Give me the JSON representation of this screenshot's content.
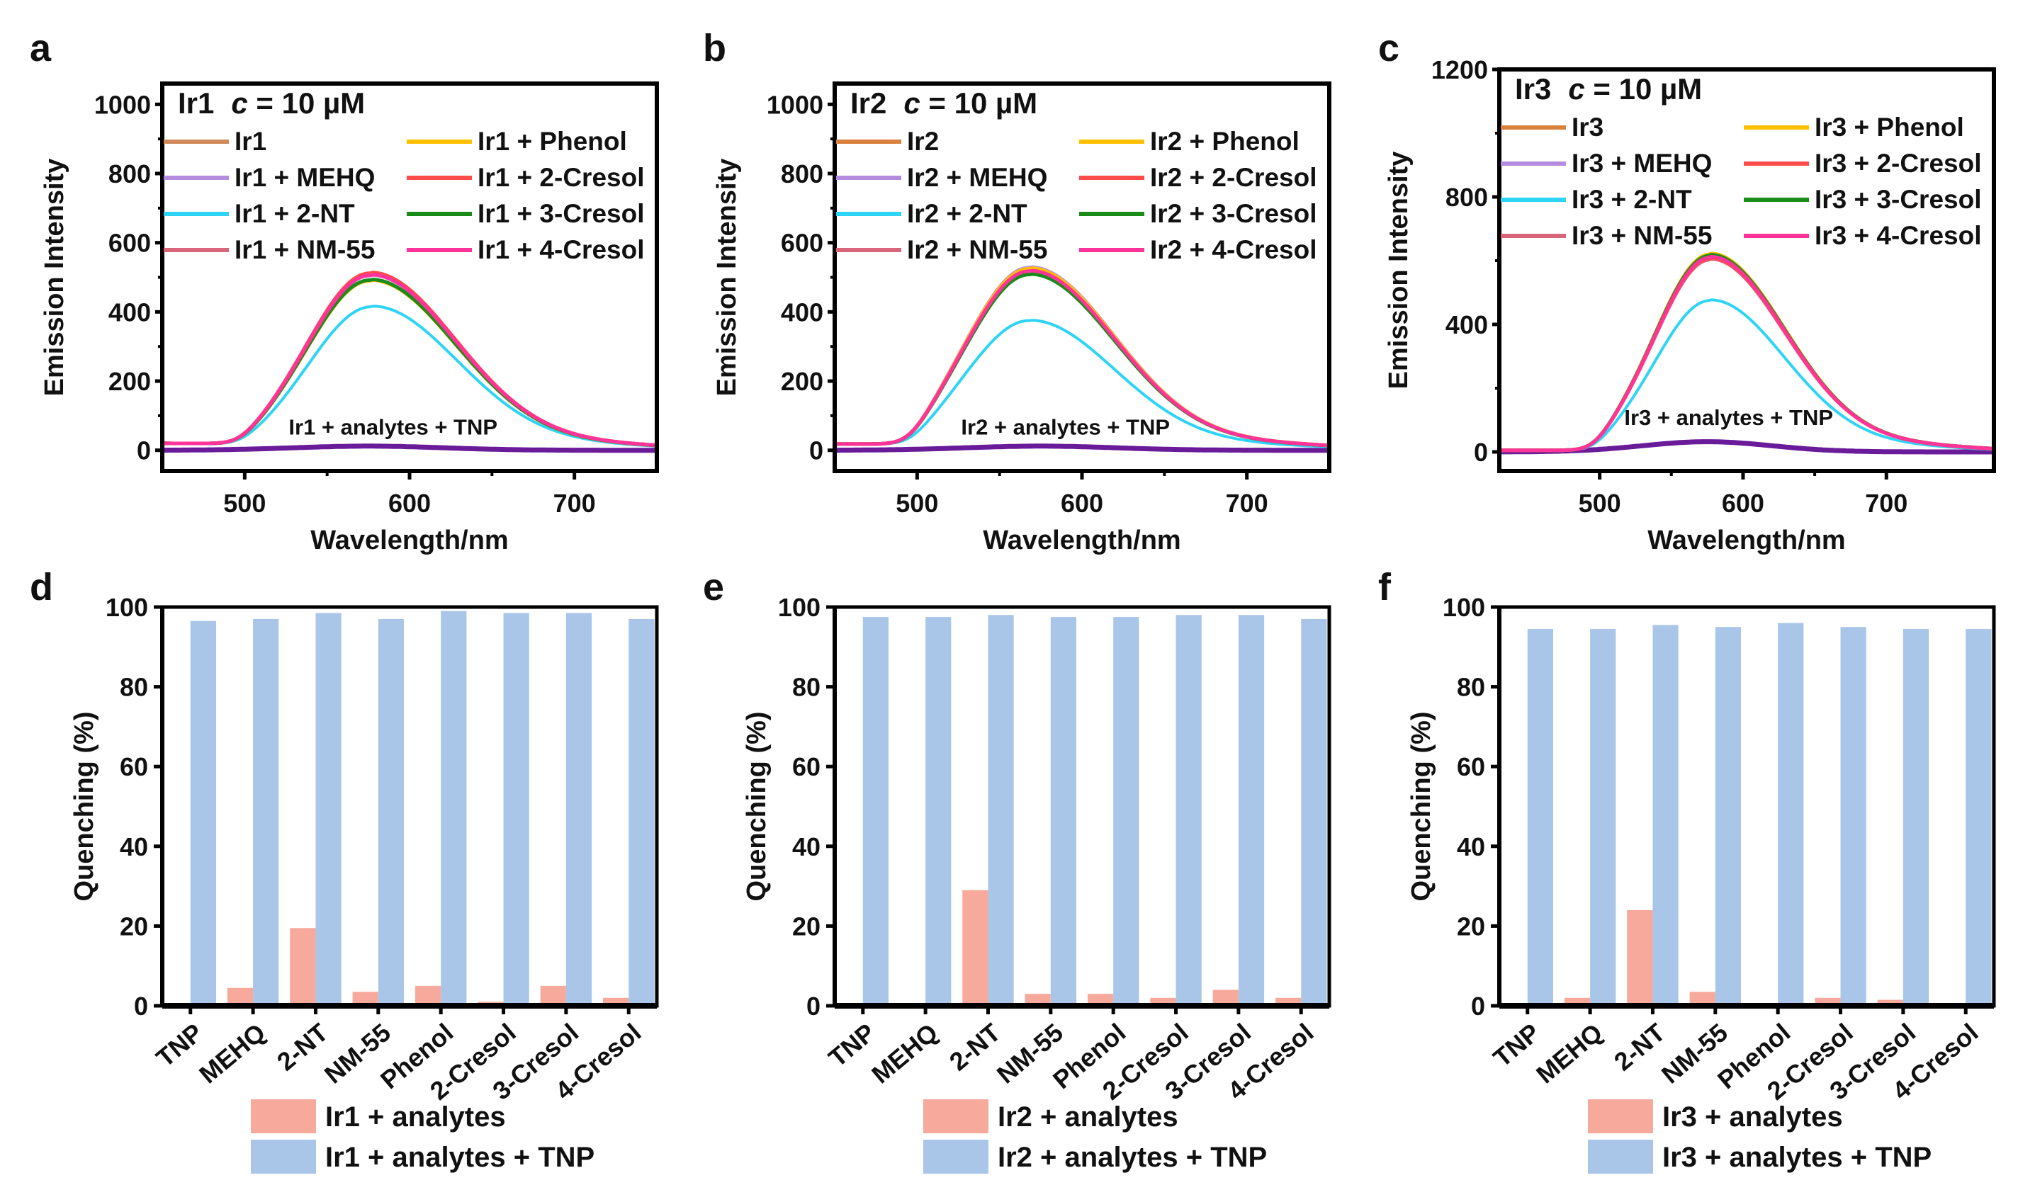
{
  "figure": {
    "panels": [
      "a",
      "b",
      "c",
      "d",
      "e",
      "f"
    ]
  },
  "chart_data": [
    {
      "panel": "a",
      "type": "line",
      "title": "Ir1  c = 10 µM",
      "title_prefix": "Ir1",
      "title_var": "c",
      "title_suffix": " = 10 µM",
      "xlabel": "Wavelength/nm",
      "ylabel": "Emission Intensity",
      "xlim": [
        450,
        750
      ],
      "ylim": [
        -60,
        1060
      ],
      "xticks": [
        500,
        600,
        700
      ],
      "yticks": [
        0,
        200,
        400,
        600,
        800,
        1000
      ],
      "annotation": "Ir1 + analytes + TNP",
      "legend_position": "top (two columns)",
      "series": [
        {
          "name": "Ir1",
          "color": "#D08A5A",
          "peak": 510,
          "peak_x": 576
        },
        {
          "name": "Ir1 + MEHQ",
          "color": "#B58BE0",
          "peak": 505,
          "peak_x": 576
        },
        {
          "name": "Ir1 + 2-NT",
          "color": "#2ED4F5",
          "peak": 415,
          "peak_x": 577
        },
        {
          "name": "Ir1 + NM-55",
          "color": "#D9657A",
          "peak": 508,
          "peak_x": 576
        },
        {
          "name": "Ir1 + Phenol",
          "color": "#FFC000",
          "peak": 490,
          "peak_x": 576
        },
        {
          "name": "Ir1 + 2-Cresol",
          "color": "#FF4B4B",
          "peak": 512,
          "peak_x": 576
        },
        {
          "name": "Ir1 + 3-Cresol",
          "color": "#1A8C1A",
          "peak": 492,
          "peak_x": 576
        },
        {
          "name": "Ir1 + 4-Cresol",
          "color": "#FF3399",
          "peak": 506,
          "peak_x": 576
        }
      ],
      "baseline_start": 20,
      "quenched": {
        "name": "Ir1 + analytes + TNP",
        "color": "#6A1B9A",
        "peak": 12
      }
    },
    {
      "panel": "b",
      "type": "line",
      "title": "Ir2  c = 10 µM",
      "title_prefix": "Ir2",
      "title_var": "c",
      "title_suffix": " = 10 µM",
      "xlabel": "Wavelength/nm",
      "ylabel": "Emission Intensity",
      "xlim": [
        450,
        750
      ],
      "ylim": [
        -60,
        1060
      ],
      "xticks": [
        500,
        600,
        700
      ],
      "yticks": [
        0,
        200,
        400,
        600,
        800,
        1000
      ],
      "annotation": "Ir2 + analytes + TNP",
      "legend_position": "top (two columns)",
      "series": [
        {
          "name": "Ir2",
          "color": "#D9803A",
          "peak": 522,
          "peak_x": 568
        },
        {
          "name": "Ir2 + MEHQ",
          "color": "#B58BE0",
          "peak": 528,
          "peak_x": 568
        },
        {
          "name": "Ir2 + 2-NT",
          "color": "#2ED4F5",
          "peak": 375,
          "peak_x": 568
        },
        {
          "name": "Ir2 + NM-55",
          "color": "#D9657A",
          "peak": 520,
          "peak_x": 568
        },
        {
          "name": "Ir2 + Phenol",
          "color": "#FFC000",
          "peak": 525,
          "peak_x": 568
        },
        {
          "name": "Ir2 + 2-Cresol",
          "color": "#FF4B4B",
          "peak": 516,
          "peak_x": 568
        },
        {
          "name": "Ir2 + 3-Cresol",
          "color": "#1A8C1A",
          "peak": 508,
          "peak_x": 568
        },
        {
          "name": "Ir2 + 4-Cresol",
          "color": "#FF3399",
          "peak": 518,
          "peak_x": 568
        }
      ],
      "baseline_start": 18,
      "quenched": {
        "name": "Ir2 + analytes + TNP",
        "color": "#6A1B9A",
        "peak": 12
      }
    },
    {
      "panel": "c",
      "type": "line",
      "title": "Ir3  c = 10 µM",
      "title_prefix": "Ir3",
      "title_var": "c",
      "title_suffix": " = 10 µM",
      "xlabel": "Wavelength/nm",
      "ylabel": "Emission Intensity",
      "xlim": [
        430,
        775
      ],
      "ylim": [
        -60,
        1200
      ],
      "xticks": [
        500,
        600,
        700
      ],
      "yticks": [
        0,
        400,
        800,
        1200
      ],
      "annotation": "Ir3 + analytes + TNP",
      "legend_position": "top (two columns)",
      "series": [
        {
          "name": "Ir3",
          "color": "#D9803A",
          "peak": 612,
          "peak_x": 577
        },
        {
          "name": "Ir3 + MEHQ",
          "color": "#B58BE0",
          "peak": 608,
          "peak_x": 577
        },
        {
          "name": "Ir3 + 2-NT",
          "color": "#2ED4F5",
          "peak": 475,
          "peak_x": 577
        },
        {
          "name": "Ir3 + NM-55",
          "color": "#D9657A",
          "peak": 603,
          "peak_x": 577
        },
        {
          "name": "Ir3 + Phenol",
          "color": "#FFC000",
          "peak": 620,
          "peak_x": 577
        },
        {
          "name": "Ir3 + 2-Cresol",
          "color": "#FF4B4B",
          "peak": 606,
          "peak_x": 577
        },
        {
          "name": "Ir3 + 3-Cresol",
          "color": "#1A8C1A",
          "peak": 616,
          "peak_x": 577
        },
        {
          "name": "Ir3 + 4-Cresol",
          "color": "#FF3399",
          "peak": 610,
          "peak_x": 577
        }
      ],
      "baseline_start": 5,
      "quenched": {
        "name": "Ir3 + analytes + TNP",
        "color": "#6A1B9A",
        "peak": 32
      }
    },
    {
      "panel": "d",
      "type": "bar",
      "xlabel": "",
      "ylabel": "Quenching (%)",
      "ylim": [
        0,
        100
      ],
      "yticks": [
        0,
        20,
        40,
        60,
        80,
        100
      ],
      "categories": [
        "TNP",
        "MEHQ",
        "2-NT",
        "NM-55",
        "Phenol",
        "2-Cresol",
        "3-Cresol",
        "4-Cresol"
      ],
      "legend_position": "bottom",
      "series": [
        {
          "name": "Ir1 + analytes",
          "color": "#F7A99C",
          "values": [
            0,
            4.5,
            19.5,
            3.5,
            5,
            1,
            5,
            2
          ]
        },
        {
          "name": "Ir1 + analytes + TNP",
          "color": "#A9C6E8",
          "values": [
            96.5,
            97,
            98.5,
            97,
            99,
            98.5,
            98.5,
            97
          ]
        }
      ]
    },
    {
      "panel": "e",
      "type": "bar",
      "xlabel": "",
      "ylabel": "Quenching (%)",
      "ylim": [
        0,
        100
      ],
      "yticks": [
        0,
        20,
        40,
        60,
        80,
        100
      ],
      "categories": [
        "TNP",
        "MEHQ",
        "2-NT",
        "NM-55",
        "Phenol",
        "2-Cresol",
        "3-Cresol",
        "4-Cresol"
      ],
      "legend_position": "bottom",
      "series": [
        {
          "name": "Ir2 + analytes",
          "color": "#F7A99C",
          "values": [
            0,
            0,
            29,
            3,
            3,
            2,
            4,
            2
          ]
        },
        {
          "name": "Ir2 + analytes + TNP",
          "color": "#A9C6E8",
          "values": [
            97.5,
            97.5,
            98,
            97.5,
            97.5,
            98,
            98,
            97
          ]
        }
      ]
    },
    {
      "panel": "f",
      "type": "bar",
      "xlabel": "",
      "ylabel": "Quenching (%)",
      "ylim": [
        0,
        100
      ],
      "yticks": [
        0,
        20,
        40,
        60,
        80,
        100
      ],
      "categories": [
        "TNP",
        "MEHQ",
        "2-NT",
        "NM-55",
        "Phenol",
        "2-Cresol",
        "3-Cresol",
        "4-Cresol"
      ],
      "legend_position": "bottom",
      "series": [
        {
          "name": "Ir3 + analytes",
          "color": "#F7A99C",
          "values": [
            0,
            2,
            24,
            3.5,
            0,
            2,
            1.5,
            0
          ]
        },
        {
          "name": "Ir3 + analytes + TNP",
          "color": "#A9C6E8",
          "values": [
            94.5,
            94.5,
            95.5,
            95,
            96,
            95,
            94.5,
            94.5
          ]
        }
      ]
    }
  ]
}
